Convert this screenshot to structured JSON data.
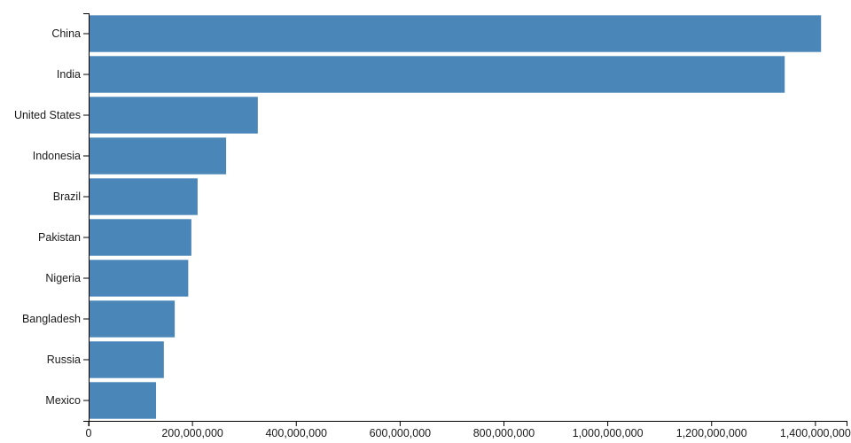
{
  "chart_data": {
    "type": "bar",
    "orientation": "horizontal",
    "title": "",
    "xlabel": "",
    "ylabel": "",
    "categories": [
      "China",
      "India",
      "United States",
      "Indonesia",
      "Brazil",
      "Pakistan",
      "Nigeria",
      "Bangladesh",
      "Russia",
      "Mexico"
    ],
    "values": [
      1410000000,
      1340000000,
      325000000,
      264000000,
      209000000,
      197000000,
      191000000,
      165000000,
      144000000,
      129000000
    ],
    "xlim": [
      0,
      1460000000
    ],
    "x_ticks": [
      0,
      200000000,
      400000000,
      600000000,
      800000000,
      1000000000,
      1200000000,
      1400000000
    ],
    "grid": false,
    "legend_position": "none",
    "colors": {
      "bar": "#4a86b8",
      "axis": "#000000",
      "text": "#1a1a1a"
    }
  }
}
